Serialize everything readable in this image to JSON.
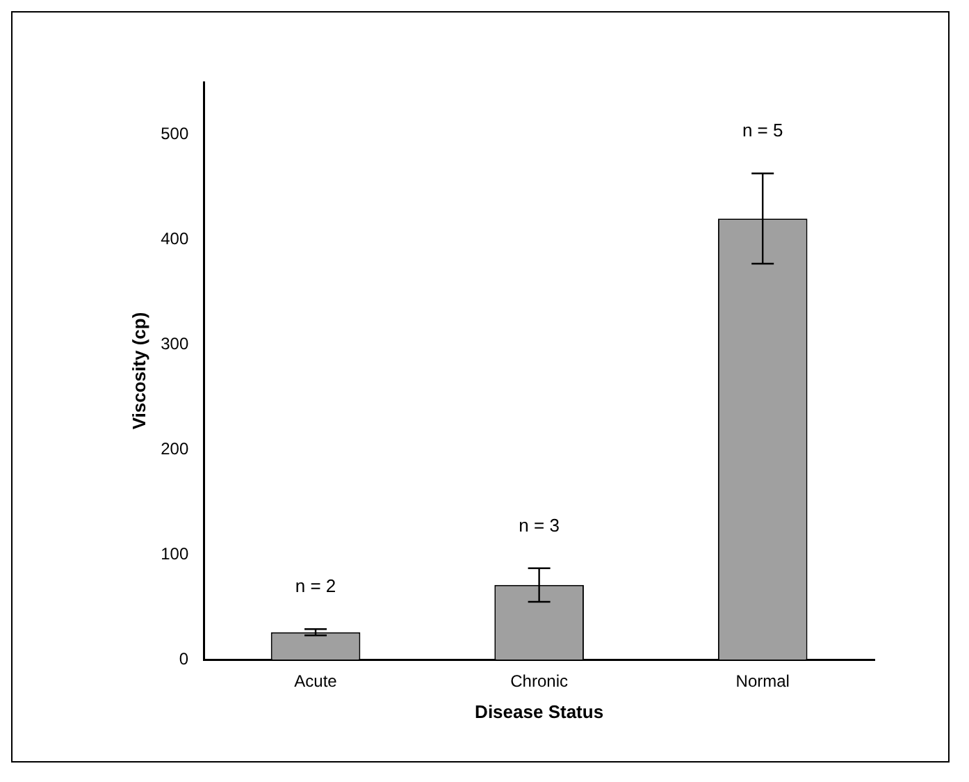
{
  "chart_data": {
    "type": "bar",
    "xlabel": "Disease Status",
    "ylabel": "Viscosity (cp)",
    "categories": [
      "Acute",
      "Chronic",
      "Normal"
    ],
    "values": [
      26,
      71,
      420
    ],
    "errors": [
      3,
      16,
      43
    ],
    "color": "#a0a0a0",
    "ylim": [
      0,
      550
    ],
    "yticks": [
      0,
      100,
      200,
      300,
      400,
      500
    ],
    "grid": false,
    "legend": false,
    "annotations": [
      "n = 2",
      "n = 3",
      "n = 5"
    ]
  }
}
